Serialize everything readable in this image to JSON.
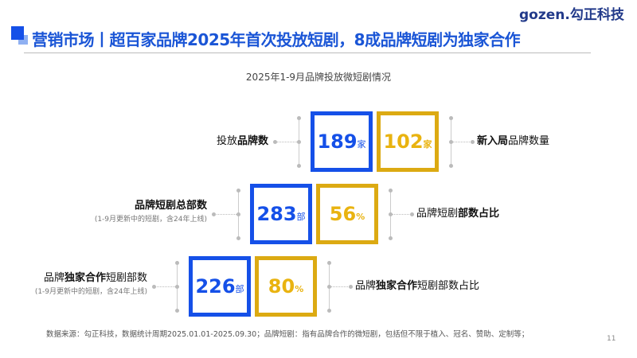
{
  "header": {
    "title": "营销市场丨超百家品牌2025年首次投放短剧，8成品牌短剧为独家合作",
    "logo": "gozen.勾正科技",
    "accent": "#1550e8",
    "gold": "#dcaa12"
  },
  "subtitle": "2025年1-9月品牌投放微短剧情况",
  "rows": [
    {
      "left_pre": "投放",
      "left_bold": "品牌数",
      "left_post": "",
      "note": "",
      "blue_value": "189",
      "blue_unit": "家",
      "gold_value": "102",
      "gold_unit": "家",
      "right_pre": "",
      "right_bold": "新入局",
      "right_post": "品牌数量"
    },
    {
      "left_pre": "",
      "left_bold": "品牌短剧总部数",
      "left_post": "",
      "note": "(1-9月更新中的短剧，含24年上线)",
      "blue_value": "283",
      "blue_unit": "部",
      "gold_value": "56",
      "gold_unit": "%",
      "right_pre": "品牌短剧",
      "right_bold": "部数占比",
      "right_post": ""
    },
    {
      "left_pre": "品牌",
      "left_bold": "独家合作",
      "left_post": "短剧部数",
      "note": "(1-9月更新中的短剧，含24年上线)",
      "blue_value": "226",
      "blue_unit": "部",
      "gold_value": "80",
      "gold_unit": "%",
      "right_pre": "品牌",
      "right_bold": "独家合作",
      "right_post": "短剧部数占比"
    }
  ],
  "footer": "数据来源：勾正科技，数据统计周期2025.01.01-2025.09.30；品牌短剧：指有品牌合作的微短剧，包括但不限于植入、冠名、赞助、定制等；",
  "page_number": "11"
}
